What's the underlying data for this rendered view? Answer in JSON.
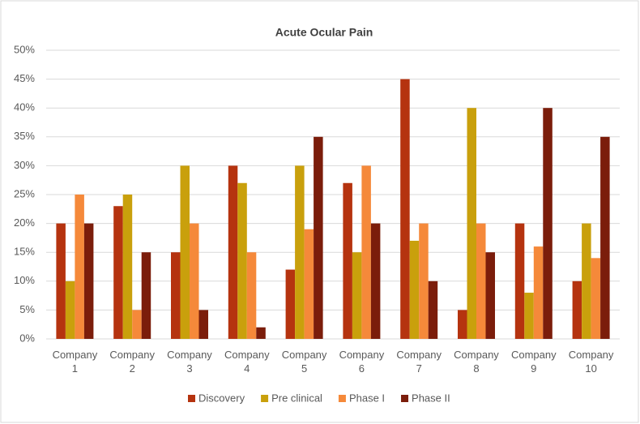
{
  "chart_data": {
    "type": "bar",
    "title": "Acute Ocular Pain",
    "categories": [
      "Company 1",
      "Company 2",
      "Company 3",
      "Company 4",
      "Company 5",
      "Company 6",
      "Company 7",
      "Company 8",
      "Company 9",
      "Company 10"
    ],
    "series": [
      {
        "name": "Discovery",
        "color": "#b5330f",
        "values": [
          20,
          23,
          15,
          30,
          12,
          27,
          45,
          5,
          20,
          10
        ]
      },
      {
        "name": "Pre clinical",
        "color": "#c9a00c",
        "values": [
          10,
          25,
          30,
          27,
          30,
          15,
          17,
          40,
          8,
          20
        ]
      },
      {
        "name": "Phase I",
        "color": "#f5893a",
        "values": [
          25,
          5,
          20,
          15,
          19,
          30,
          20,
          20,
          16,
          14
        ]
      },
      {
        "name": "Phase II",
        "color": "#7b1d0b",
        "values": [
          20,
          15,
          5,
          2,
          35,
          20,
          10,
          15,
          40,
          35
        ]
      }
    ],
    "ylim": [
      0,
      50
    ],
    "yticks": [
      {
        "value": 0,
        "label": "0%"
      },
      {
        "value": 5,
        "label": "5%"
      },
      {
        "value": 10,
        "label": "10%"
      },
      {
        "value": 15,
        "label": "15%"
      },
      {
        "value": 20,
        "label": "20%"
      },
      {
        "value": 25,
        "label": "25%"
      },
      {
        "value": 30,
        "label": "30%"
      },
      {
        "value": 35,
        "label": "35%"
      },
      {
        "value": 40,
        "label": "40%"
      },
      {
        "value": 45,
        "label": "45%"
      },
      {
        "value": 50,
        "label": "50%"
      }
    ],
    "grid": true,
    "legend": "bottom"
  }
}
